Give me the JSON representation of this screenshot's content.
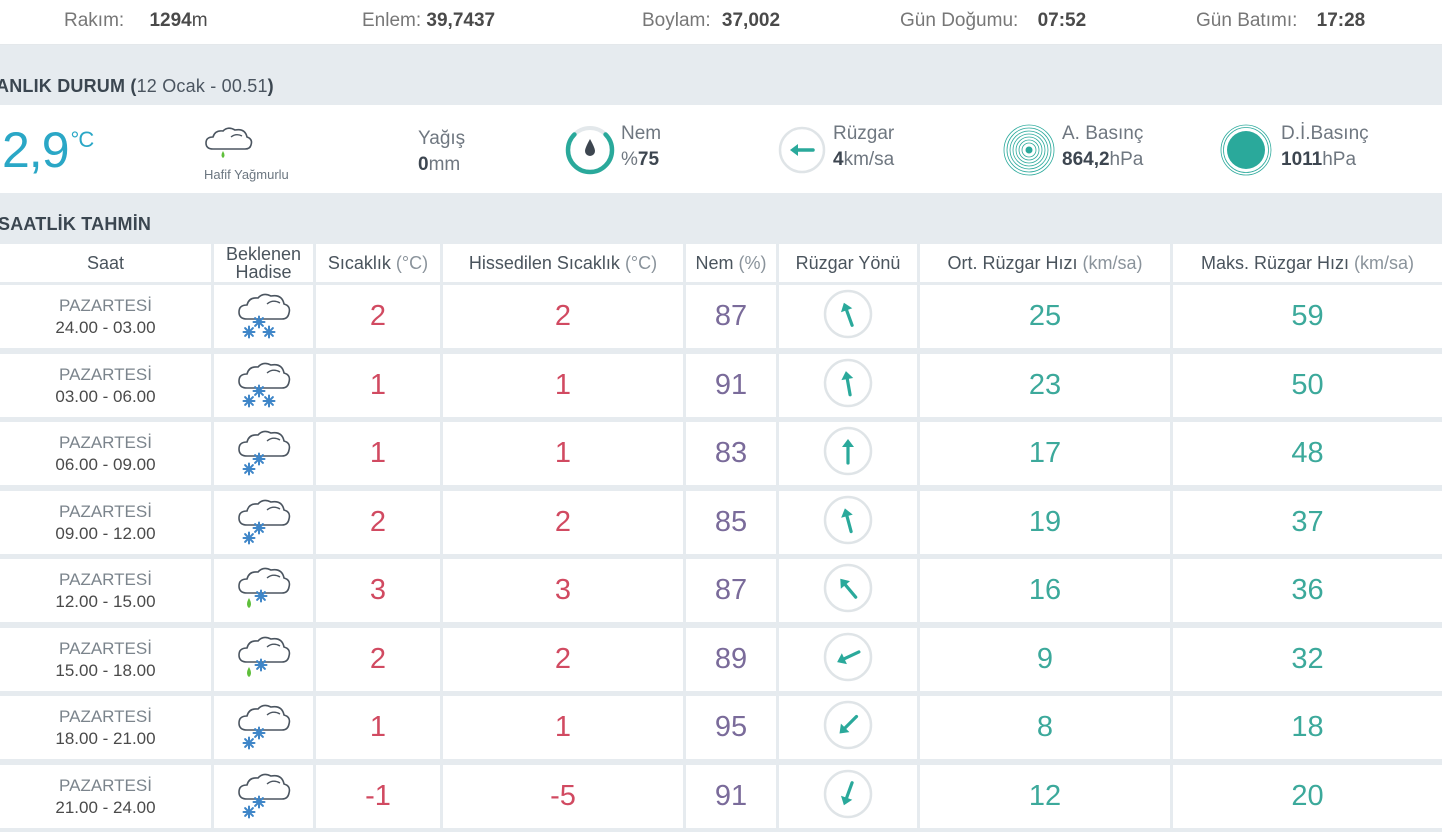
{
  "topbar": {
    "rakim_label": "Rakım:",
    "rakim_value": "1294",
    "rakim_unit": "m",
    "enlem_label": "Enlem:",
    "enlem_value": "39,7437",
    "boylam_label": "Boylam:",
    "boylam_value": "37,002",
    "gundogumu_label": "Gün Doğumu:",
    "gundogumu_value": "07:52",
    "gunbatimi_label": "Gün Batımı:",
    "gunbatimi_value": "17:28"
  },
  "current": {
    "title": "ANLIK DURUM",
    "title_open": "(",
    "title_sub": "12 Ocak - 00.51",
    "title_close": ")",
    "temp": "2,9",
    "temp_unit": "°C",
    "condition": "Hafif Yağmurlu",
    "condition_icon": "light-rain-cloud-icon",
    "yagis_label": "Yağış",
    "yagis_value": "0",
    "yagis_unit": "mm",
    "nem_label": "Nem",
    "nem_prefix": "%",
    "nem_value": "75",
    "nem_level": 0.75,
    "ruzgar_label": "Rüzgar",
    "ruzgar_value": "4",
    "ruzgar_unit": "km/sa",
    "abasinc_label": "A. Basınç",
    "abasinc_value": "864,2",
    "abasinc_unit": "hPa",
    "dibasinc_label": "D.İ.Basınç",
    "dibasinc_value": "1011",
    "dibasinc_unit": "hPa"
  },
  "forecast": {
    "title": "SAATLİK TAHMİN",
    "headers": {
      "saat": "Saat",
      "hadise_1": "Beklenen",
      "hadise_2": "Hadise",
      "sicaklik": "Sıcaklık",
      "sicaklik_unit": "(°C)",
      "hissedilen": "Hissedilen Sıcaklık",
      "hissedilen_unit": "(°C)",
      "nem": "Nem",
      "nem_unit": "(%)",
      "yon": "Rüzgar Yönü",
      "ort": "Ort. Rüzgar Hızı",
      "ort_unit": "(km/sa)",
      "maks": "Maks. Rüzgar Hızı",
      "maks_unit": "(km/sa)"
    },
    "rows": [
      {
        "day": "PAZARTESİ",
        "time": "24.00 - 03.00",
        "icon": "snow-cloud-icon",
        "temp": "2",
        "feel": "2",
        "nem": "87",
        "dir_deg": 160,
        "ort": "25",
        "maks": "59"
      },
      {
        "day": "PAZARTESİ",
        "time": "03.00 - 06.00",
        "icon": "snow-cloud-icon",
        "temp": "1",
        "feel": "1",
        "nem": "91",
        "dir_deg": 170,
        "ort": "23",
        "maks": "50"
      },
      {
        "day": "PAZARTESİ",
        "time": "06.00 - 09.00",
        "icon": "light-snow-cloud-icon",
        "temp": "1",
        "feel": "1",
        "nem": "83",
        "dir_deg": 180,
        "ort": "17",
        "maks": "48"
      },
      {
        "day": "PAZARTESİ",
        "time": "09.00 - 12.00",
        "icon": "light-snow-cloud-icon",
        "temp": "2",
        "feel": "2",
        "nem": "85",
        "dir_deg": 165,
        "ort": "19",
        "maks": "37"
      },
      {
        "day": "PAZARTESİ",
        "time": "12.00 - 15.00",
        "icon": "sleet-cloud-icon",
        "temp": "3",
        "feel": "3",
        "nem": "87",
        "dir_deg": 140,
        "ort": "16",
        "maks": "36"
      },
      {
        "day": "PAZARTESİ",
        "time": "15.00 - 18.00",
        "icon": "sleet-cloud-icon",
        "temp": "2",
        "feel": "2",
        "nem": "89",
        "dir_deg": 65,
        "ort": "9",
        "maks": "32"
      },
      {
        "day": "PAZARTESİ",
        "time": "18.00 - 21.00",
        "icon": "light-snow-cloud-icon",
        "temp": "1",
        "feel": "1",
        "nem": "95",
        "dir_deg": 45,
        "ort": "8",
        "maks": "18"
      },
      {
        "day": "PAZARTESİ",
        "time": "21.00 - 24.00",
        "icon": "light-snow-cloud-icon",
        "temp": "-1",
        "feel": "-5",
        "nem": "91",
        "dir_deg": 20,
        "ort": "12",
        "maks": "20"
      }
    ]
  },
  "colors": {
    "teal": "#2aa7c6",
    "green": "#3ca99b",
    "red": "#d14a61",
    "purple": "#7a6b9a",
    "snow": "#3f86c8",
    "rain": "#5fbf3b",
    "band": "#e6ebef"
  }
}
